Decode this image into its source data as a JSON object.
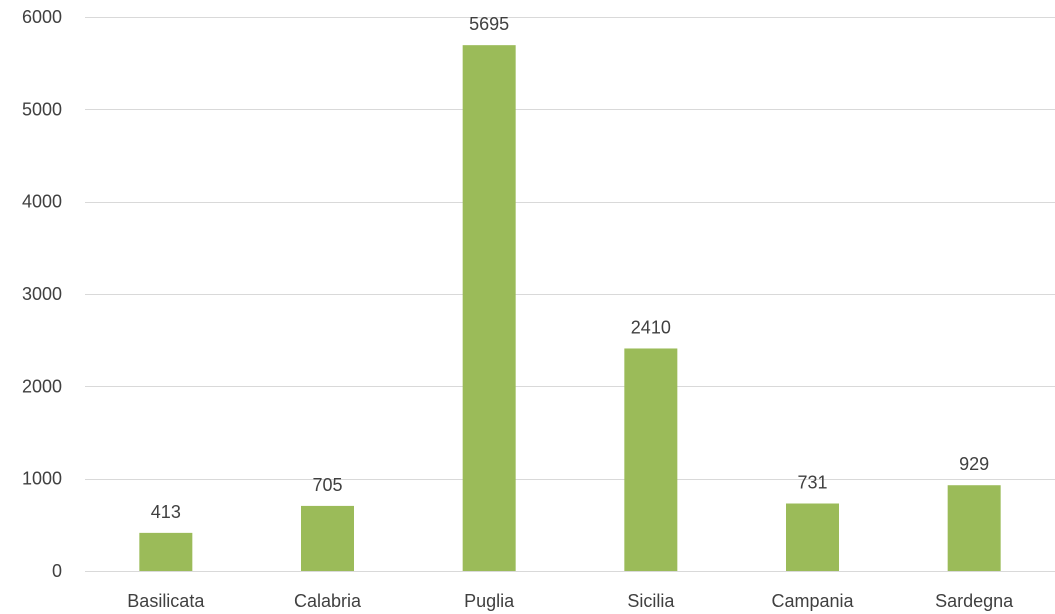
{
  "chart_data": {
    "type": "bar",
    "title": "",
    "xlabel": "",
    "ylabel": "",
    "categories": [
      "Basilicata",
      "Calabria",
      "Puglia",
      "Sicilia",
      "Campania",
      "Sardegna"
    ],
    "values": [
      413,
      705,
      5695,
      2410,
      731,
      929
    ],
    "data_labels": [
      "413",
      "705",
      "5695",
      "2410",
      "731",
      "929"
    ],
    "ylim": [
      0,
      6000
    ],
    "y_ticks": [
      0,
      1000,
      2000,
      3000,
      4000,
      5000,
      6000
    ],
    "y_tick_labels": [
      "0",
      "1000",
      "2000",
      "3000",
      "4000",
      "5000",
      "6000"
    ],
    "grid": true,
    "legend": "none",
    "bar_color": "#9bbb59",
    "grid_color": "#d9d9d9",
    "text_color": "#404040"
  }
}
